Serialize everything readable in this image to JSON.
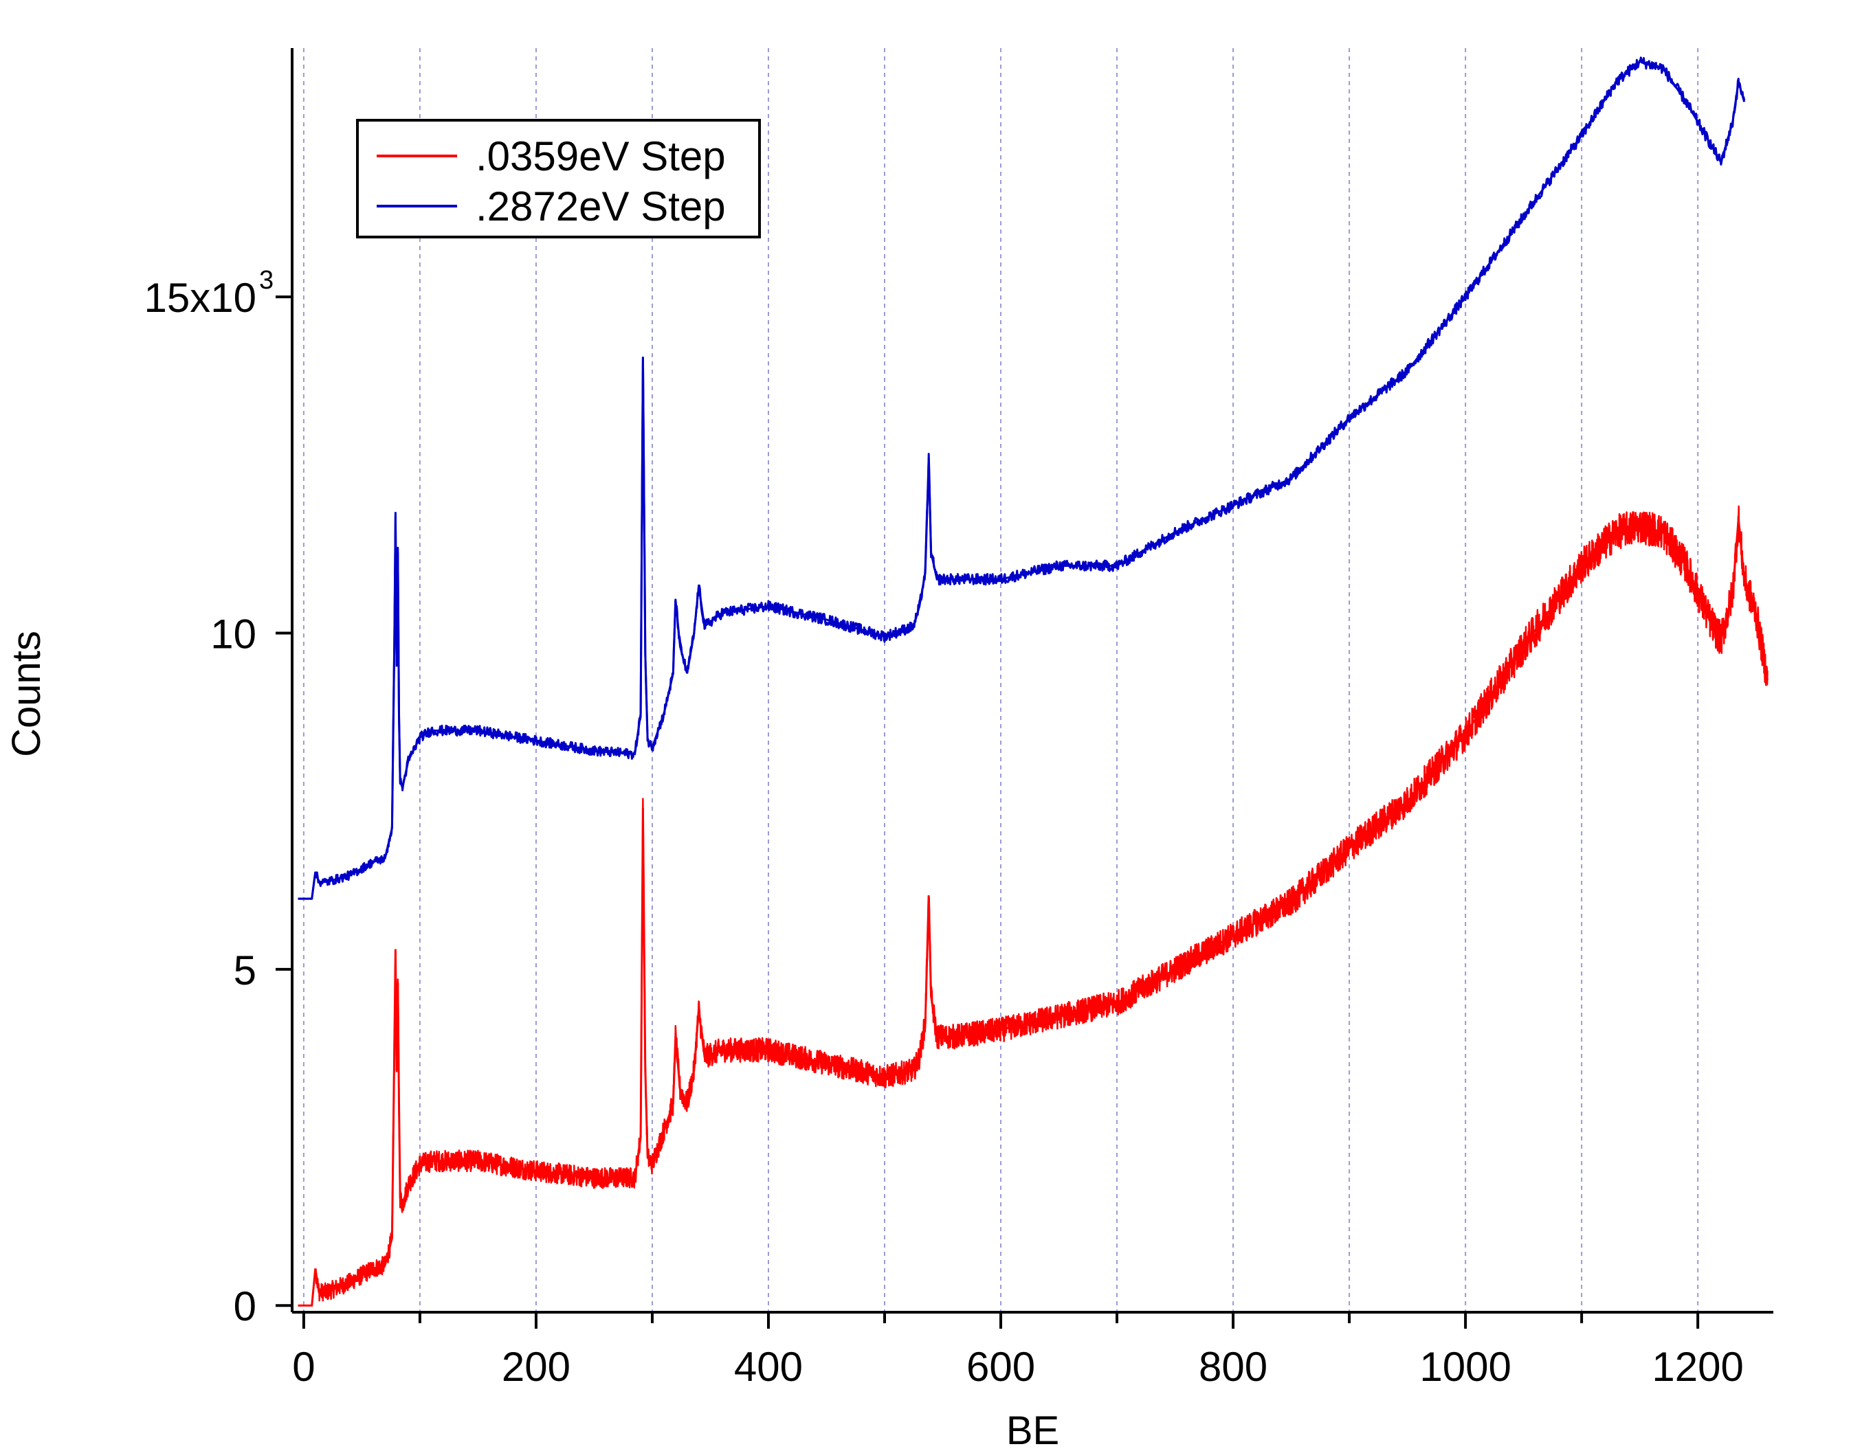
{
  "chart_data": {
    "type": "line",
    "title": "",
    "xlabel": "BE",
    "ylabel": "Counts",
    "xlim": [
      -10,
      1265
    ],
    "ylim": [
      -100,
      18700
    ],
    "x_ticks": [
      0,
      200,
      400,
      600,
      800,
      1000,
      1200
    ],
    "x_minor_ticks": [
      100,
      300,
      500,
      700,
      900,
      1100
    ],
    "x_tick_labels": [
      "0",
      "200",
      "400",
      "600",
      "800",
      "1000",
      "1200"
    ],
    "y_ticks": [
      0,
      5000,
      10000,
      15000
    ],
    "y_tick_labels": [
      "0",
      "5",
      "10",
      "15x10"
    ],
    "y_exponent": "3",
    "grid": "vertical dashed at every 100",
    "grid_color": "#9a9ad8",
    "legend_position": "top-left",
    "series": [
      {
        "name": ".0359eV Step",
        "color": "#ff0000",
        "noise": 260,
        "x": [
          -5,
          7,
          10,
          13,
          20,
          40,
          60,
          70,
          76,
          78,
          79,
          80,
          81,
          82,
          83,
          85,
          90,
          100,
          110,
          150,
          200,
          250,
          285,
          290,
          292,
          294,
          296,
          300,
          310,
          318,
          320,
          324,
          330,
          336,
          340,
          345,
          360,
          400,
          450,
          500,
          525,
          530,
          535,
          538,
          540,
          545,
          560,
          600,
          650,
          700,
          750,
          800,
          850,
          900,
          950,
          1000,
          1050,
          1100,
          1130,
          1150,
          1170,
          1190,
          1210,
          1220,
          1230,
          1235,
          1240,
          1250,
          1260
        ],
        "y": [
          0,
          0,
          550,
          200,
          200,
          350,
          550,
          600,
          1000,
          3800,
          5300,
          3500,
          4800,
          3000,
          1600,
          1500,
          1800,
          2100,
          2150,
          2150,
          2000,
          1900,
          1900,
          2500,
          7400,
          3500,
          2200,
          2100,
          2600,
          3000,
          4000,
          3200,
          3000,
          3500,
          4400,
          3700,
          3800,
          3800,
          3600,
          3400,
          3500,
          3700,
          4200,
          6100,
          4600,
          4000,
          4000,
          4100,
          4300,
          4500,
          5000,
          5500,
          6000,
          6800,
          7500,
          8500,
          9800,
          11000,
          11500,
          11600,
          11500,
          11000,
          10200,
          9900,
          10600,
          11700,
          10800,
          10300,
          9300
        ]
      },
      {
        "name": ".2872eV Step",
        "color": "#0000c8",
        "noise": 80,
        "x": [
          -5,
          7,
          10,
          13,
          20,
          40,
          60,
          70,
          76,
          78,
          79,
          80,
          81,
          82,
          83,
          85,
          90,
          100,
          110,
          150,
          200,
          250,
          285,
          290,
          292,
          294,
          296,
          300,
          310,
          318,
          320,
          324,
          330,
          336,
          340,
          345,
          360,
          400,
          450,
          500,
          525,
          530,
          535,
          538,
          540,
          545,
          560,
          600,
          650,
          700,
          750,
          800,
          850,
          900,
          950,
          1000,
          1050,
          1100,
          1130,
          1150,
          1170,
          1190,
          1210,
          1220,
          1230,
          1235,
          1240
        ],
        "y": [
          6050,
          6050,
          6450,
          6300,
          6300,
          6400,
          6600,
          6650,
          7100,
          9800,
          11800,
          9500,
          11200,
          8800,
          7800,
          7700,
          8100,
          8450,
          8550,
          8550,
          8400,
          8250,
          8200,
          8800,
          14100,
          9700,
          8400,
          8300,
          8800,
          9400,
          10500,
          9800,
          9400,
          10000,
          10700,
          10100,
          10300,
          10400,
          10200,
          9950,
          10100,
          10400,
          10900,
          12600,
          11200,
          10800,
          10800,
          10800,
          11000,
          11000,
          11500,
          11900,
          12300,
          13200,
          13900,
          15000,
          16200,
          17400,
          18200,
          18500,
          18400,
          17900,
          17300,
          17000,
          17600,
          18200,
          17900
        ]
      }
    ]
  }
}
